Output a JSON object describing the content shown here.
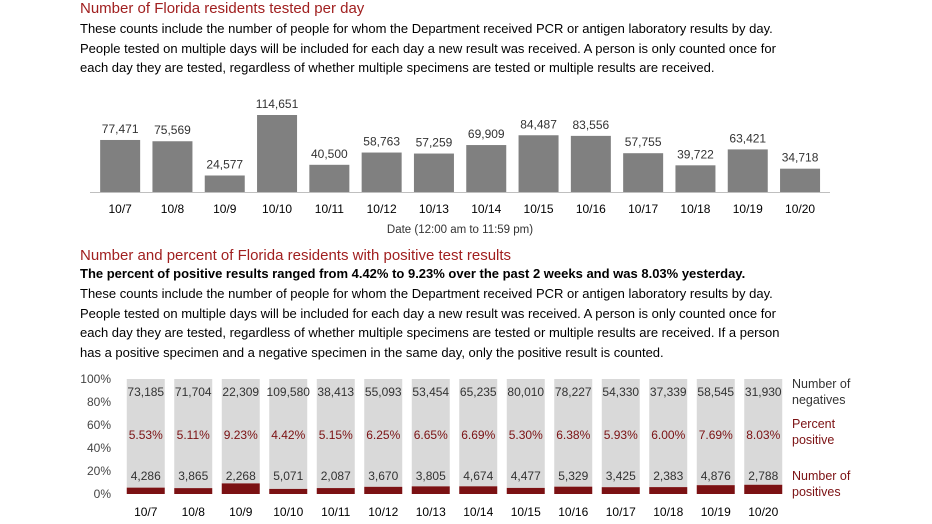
{
  "section1": {
    "title": "Number of Florida residents tested per day",
    "paragraph_lines": [
      "These counts include the number of people for whom the Department received PCR or antigen laboratory results by day.",
      "People tested on multiple days will be included for each day a new result was received. A person is only counted once for",
      "each day they are tested, regardless of whether multiple specimens are tested or multiple results are received."
    ]
  },
  "section2": {
    "title": "Number and percent of Florida residents with positive test results",
    "bold_line": "The percent of positive results ranged from 4.42% to 9.23% over the past 2 weeks and was 8.03% yesterday.",
    "paragraph_lines": [
      "These counts include the number of people for whom the Department received PCR or antigen laboratory results by day.",
      "People tested on multiple days will be included for each day a new result was received. A person is only counted once for",
      "each day they are tested, regardless of whether multiple specimens are tested or multiple results are received. If a person",
      "has a positive specimen and a negative specimen in the same day, only the positive result is counted."
    ]
  },
  "colors": {
    "title": "#a01f1f",
    "gray_bar": "#808080",
    "light_bar": "#d9d9d9",
    "positive": "#7b1113"
  },
  "chart_data": [
    {
      "type": "bar",
      "title": "",
      "xlabel": "Date (12:00 am to 11:59 pm)",
      "ylabel": "",
      "categories": [
        "10/7",
        "10/8",
        "10/9",
        "10/10",
        "10/11",
        "10/12",
        "10/13",
        "10/14",
        "10/15",
        "10/16",
        "10/17",
        "10/18",
        "10/19",
        "10/20"
      ],
      "values": [
        77471,
        75569,
        24577,
        114651,
        40500,
        58763,
        57259,
        69909,
        84487,
        83556,
        57755,
        39722,
        63421,
        34718
      ],
      "value_labels": [
        "77,471",
        "75,569",
        "24,577",
        "114,651",
        "40,500",
        "58,763",
        "57,259",
        "69,909",
        "84,487",
        "83,556",
        "57,755",
        "39,722",
        "63,421",
        "34,718"
      ],
      "ylim": [
        0,
        114651
      ],
      "grid": false
    },
    {
      "type": "bar",
      "stacked": "percent",
      "title": "",
      "categories": [
        "10/7",
        "10/8",
        "10/9",
        "10/10",
        "10/11",
        "10/12",
        "10/13",
        "10/14",
        "10/15",
        "10/16",
        "10/17",
        "10/18",
        "10/19",
        "10/20"
      ],
      "yticks": [
        "0%",
        "20%",
        "40%",
        "60%",
        "80%",
        "100%"
      ],
      "ylim": [
        0,
        100
      ],
      "series": [
        {
          "name": "Number of positives",
          "values": [
            4286,
            3865,
            2268,
            5071,
            2087,
            3670,
            3805,
            4674,
            4477,
            5329,
            3425,
            2383,
            4876,
            2788
          ],
          "labels": [
            "4,286",
            "3,865",
            "2,268",
            "5,071",
            "2,087",
            "3,670",
            "3,805",
            "4,674",
            "4,477",
            "5,329",
            "3,425",
            "2,383",
            "4,876",
            "2,788"
          ]
        },
        {
          "name": "Number of negatives",
          "values": [
            73185,
            71704,
            22309,
            109580,
            38413,
            55093,
            53454,
            65235,
            80010,
            78227,
            54330,
            37339,
            58545,
            31930
          ],
          "labels": [
            "73,185",
            "71,704",
            "22,309",
            "109,580",
            "38,413",
            "55,093",
            "53,454",
            "65,235",
            "80,010",
            "78,227",
            "54,330",
            "37,339",
            "58,545",
            "31,930"
          ]
        }
      ],
      "percent_positive": {
        "name": "Percent positive",
        "values": [
          5.53,
          5.11,
          9.23,
          4.42,
          5.15,
          6.25,
          6.65,
          6.69,
          5.3,
          6.38,
          5.93,
          6.0,
          7.69,
          8.03
        ],
        "labels": [
          "5.53%",
          "5.11%",
          "9.23%",
          "4.42%",
          "5.15%",
          "6.25%",
          "6.65%",
          "6.69%",
          "5.30%",
          "6.38%",
          "5.93%",
          "6.00%",
          "7.69%",
          "8.03%"
        ]
      },
      "legend": [
        "Number of negatives",
        "Percent positive",
        "Number of positives"
      ],
      "legend_position": "right",
      "grid": false
    }
  ]
}
